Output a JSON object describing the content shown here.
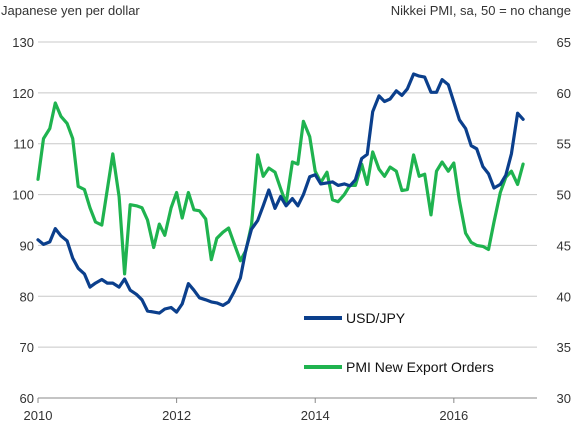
{
  "chart_data": {
    "type": "line",
    "left_axis_label": "Japanese yen per dollar",
    "right_axis_label": "Nikkei PMI, sa, 50 = no change",
    "x_ticks": [
      "2010",
      "2012",
      "2014",
      "2016"
    ],
    "xlim": [
      2010,
      2017.2
    ],
    "left_ylim": [
      60,
      130
    ],
    "left_ticks": [
      "60",
      "70",
      "80",
      "90",
      "100",
      "110",
      "120",
      "130"
    ],
    "right_ylim": [
      30,
      65
    ],
    "right_ticks": [
      "30",
      "35",
      "40",
      "45",
      "50",
      "55",
      "60",
      "65"
    ],
    "grid": "horizontal",
    "legend": "inside-bottom-center",
    "series": [
      {
        "name": "USD/JPY",
        "axis": "left",
        "color": "#0b3f8c",
        "points": [
          [
            2010.0,
            91.1
          ],
          [
            2010.08,
            90.2
          ],
          [
            2010.17,
            90.7
          ],
          [
            2010.25,
            93.3
          ],
          [
            2010.33,
            91.9
          ],
          [
            2010.42,
            90.9
          ],
          [
            2010.5,
            87.5
          ],
          [
            2010.58,
            85.5
          ],
          [
            2010.67,
            84.4
          ],
          [
            2010.75,
            81.8
          ],
          [
            2010.83,
            82.6
          ],
          [
            2010.92,
            83.3
          ],
          [
            2011.0,
            82.6
          ],
          [
            2011.08,
            82.6
          ],
          [
            2011.17,
            81.8
          ],
          [
            2011.25,
            83.4
          ],
          [
            2011.33,
            81.2
          ],
          [
            2011.42,
            80.4
          ],
          [
            2011.5,
            79.3
          ],
          [
            2011.58,
            77.1
          ],
          [
            2011.67,
            76.9
          ],
          [
            2011.75,
            76.7
          ],
          [
            2011.83,
            77.5
          ],
          [
            2011.92,
            77.8
          ],
          [
            2012.0,
            76.9
          ],
          [
            2012.08,
            78.5
          ],
          [
            2012.17,
            82.5
          ],
          [
            2012.25,
            81.2
          ],
          [
            2012.33,
            79.7
          ],
          [
            2012.42,
            79.3
          ],
          [
            2012.5,
            78.9
          ],
          [
            2012.58,
            78.7
          ],
          [
            2012.67,
            78.2
          ],
          [
            2012.75,
            78.9
          ],
          [
            2012.83,
            80.9
          ],
          [
            2012.92,
            83.6
          ],
          [
            2013.0,
            89.2
          ],
          [
            2013.08,
            93.2
          ],
          [
            2013.17,
            94.9
          ],
          [
            2013.25,
            97.8
          ],
          [
            2013.33,
            100.9
          ],
          [
            2013.42,
            97.3
          ],
          [
            2013.5,
            99.6
          ],
          [
            2013.58,
            97.8
          ],
          [
            2013.67,
            99.2
          ],
          [
            2013.75,
            97.8
          ],
          [
            2013.83,
            100.0
          ],
          [
            2013.92,
            103.5
          ],
          [
            2014.0,
            103.9
          ],
          [
            2014.08,
            102.1
          ],
          [
            2014.17,
            102.3
          ],
          [
            2014.25,
            102.5
          ],
          [
            2014.33,
            101.8
          ],
          [
            2014.42,
            102.1
          ],
          [
            2014.5,
            101.7
          ],
          [
            2014.58,
            102.9
          ],
          [
            2014.67,
            107.1
          ],
          [
            2014.75,
            107.9
          ],
          [
            2014.83,
            116.3
          ],
          [
            2014.92,
            119.4
          ],
          [
            2015.0,
            118.3
          ],
          [
            2015.08,
            118.8
          ],
          [
            2015.17,
            120.4
          ],
          [
            2015.25,
            119.5
          ],
          [
            2015.33,
            120.8
          ],
          [
            2015.42,
            123.7
          ],
          [
            2015.5,
            123.3
          ],
          [
            2015.58,
            123.1
          ],
          [
            2015.67,
            120.1
          ],
          [
            2015.75,
            120.1
          ],
          [
            2015.83,
            122.6
          ],
          [
            2015.92,
            121.6
          ],
          [
            2016.0,
            118.2
          ],
          [
            2016.08,
            114.7
          ],
          [
            2016.17,
            113.0
          ],
          [
            2016.25,
            109.6
          ],
          [
            2016.33,
            109.0
          ],
          [
            2016.42,
            105.5
          ],
          [
            2016.5,
            104.1
          ],
          [
            2016.58,
            101.3
          ],
          [
            2016.67,
            102.0
          ],
          [
            2016.75,
            103.8
          ],
          [
            2016.83,
            108.0
          ],
          [
            2016.92,
            116.0
          ],
          [
            2017.0,
            114.8
          ]
        ]
      },
      {
        "name": "PMI New Export Orders",
        "axis": "right",
        "color": "#1fb34f",
        "points": [
          [
            2010.0,
            51.5
          ],
          [
            2010.08,
            55.5
          ],
          [
            2010.17,
            56.5
          ],
          [
            2010.25,
            59.0
          ],
          [
            2010.33,
            57.7
          ],
          [
            2010.42,
            57.0
          ],
          [
            2010.5,
            55.5
          ],
          [
            2010.58,
            50.8
          ],
          [
            2010.67,
            50.5
          ],
          [
            2010.75,
            48.7
          ],
          [
            2010.83,
            47.3
          ],
          [
            2010.92,
            47.0
          ],
          [
            2011.0,
            50.5
          ],
          [
            2011.08,
            54.0
          ],
          [
            2011.17,
            49.8
          ],
          [
            2011.25,
            42.2
          ],
          [
            2011.33,
            49.0
          ],
          [
            2011.42,
            48.9
          ],
          [
            2011.5,
            48.7
          ],
          [
            2011.58,
            47.5
          ],
          [
            2011.67,
            44.8
          ],
          [
            2011.75,
            47.1
          ],
          [
            2011.83,
            46.0
          ],
          [
            2011.92,
            48.7
          ],
          [
            2012.0,
            50.2
          ],
          [
            2012.08,
            47.7
          ],
          [
            2012.17,
            50.2
          ],
          [
            2012.25,
            48.5
          ],
          [
            2012.33,
            48.4
          ],
          [
            2012.42,
            47.6
          ],
          [
            2012.5,
            43.6
          ],
          [
            2012.58,
            45.7
          ],
          [
            2012.67,
            46.3
          ],
          [
            2012.75,
            46.7
          ],
          [
            2012.83,
            45.2
          ],
          [
            2012.92,
            43.5
          ],
          [
            2013.0,
            44.5
          ],
          [
            2013.08,
            47.0
          ],
          [
            2013.17,
            53.9
          ],
          [
            2013.25,
            51.8
          ],
          [
            2013.33,
            52.6
          ],
          [
            2013.42,
            52.2
          ],
          [
            2013.5,
            50.6
          ],
          [
            2013.58,
            49.1
          ],
          [
            2013.67,
            53.2
          ],
          [
            2013.75,
            53.0
          ],
          [
            2013.83,
            57.2
          ],
          [
            2013.92,
            55.7
          ],
          [
            2014.0,
            52.3
          ],
          [
            2014.08,
            51.2
          ],
          [
            2014.17,
            52.2
          ],
          [
            2014.25,
            49.5
          ],
          [
            2014.33,
            49.3
          ],
          [
            2014.42,
            50.0
          ],
          [
            2014.5,
            50.9
          ],
          [
            2014.58,
            50.9
          ],
          [
            2014.67,
            53.0
          ],
          [
            2014.75,
            51.0
          ],
          [
            2014.83,
            54.2
          ],
          [
            2014.92,
            52.5
          ],
          [
            2015.0,
            51.8
          ],
          [
            2015.08,
            52.7
          ],
          [
            2015.17,
            52.3
          ],
          [
            2015.25,
            50.4
          ],
          [
            2015.33,
            50.5
          ],
          [
            2015.42,
            53.9
          ],
          [
            2015.5,
            51.8
          ],
          [
            2015.58,
            52.0
          ],
          [
            2015.67,
            48.0
          ],
          [
            2015.75,
            52.3
          ],
          [
            2015.83,
            53.2
          ],
          [
            2015.92,
            52.3
          ],
          [
            2016.0,
            53.1
          ],
          [
            2016.08,
            49.4
          ],
          [
            2016.17,
            46.2
          ],
          [
            2016.25,
            45.3
          ],
          [
            2016.33,
            45.0
          ],
          [
            2016.42,
            44.9
          ],
          [
            2016.5,
            44.6
          ],
          [
            2016.58,
            47.3
          ],
          [
            2016.67,
            50.2
          ],
          [
            2016.75,
            51.7
          ],
          [
            2016.83,
            52.3
          ],
          [
            2016.92,
            51.0
          ],
          [
            2017.0,
            53.0
          ]
        ]
      }
    ]
  }
}
